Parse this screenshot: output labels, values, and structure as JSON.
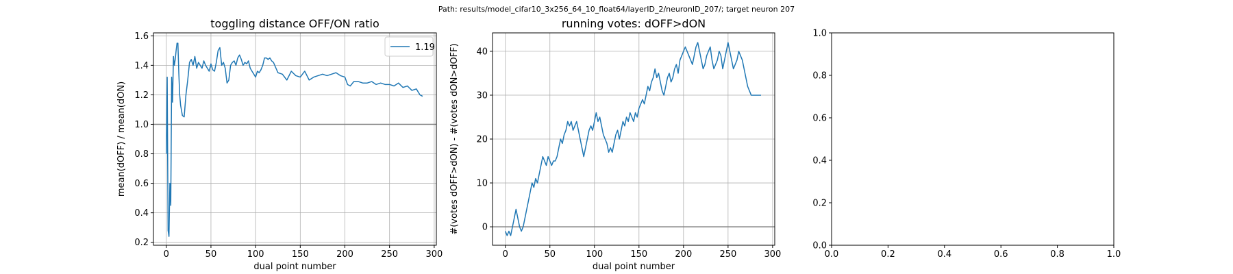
{
  "suptitle": "Path: results/model_cifar10_3x256_64_10_float64/layerID_2/neuronID_207/; target neuron 207",
  "chart_data": [
    {
      "type": "line",
      "title": "toggling distance OFF/ON ratio",
      "xlabel": "dual point number",
      "ylabel": "mean(dOFF) / mean(dON)",
      "xlim": [
        -14.4,
        302.4
      ],
      "ylim": [
        0.18,
        1.62
      ],
      "xticks": [
        0,
        50,
        100,
        150,
        200,
        250,
        300
      ],
      "yticks": [
        0.2,
        0.4,
        0.6,
        0.8,
        1.0,
        1.2,
        1.4,
        1.6
      ],
      "ytick_labels": [
        "0.2",
        "0.4",
        "0.6",
        "0.8",
        "1.0",
        "1.2",
        "1.4",
        "1.6"
      ],
      "grid": true,
      "legend_position": "top-right",
      "series": [
        {
          "name": "1.19",
          "color": "#1f77b4",
          "x": [
            0,
            1,
            2,
            3,
            4,
            5,
            6,
            7,
            8,
            9,
            10,
            11,
            12,
            13,
            14,
            15,
            16,
            18,
            20,
            22,
            24,
            26,
            28,
            30,
            32,
            34,
            36,
            38,
            40,
            42,
            44,
            46,
            48,
            50,
            52,
            54,
            56,
            58,
            60,
            62,
            64,
            66,
            68,
            70,
            72,
            74,
            76,
            78,
            80,
            82,
            84,
            86,
            88,
            90,
            92,
            94,
            96,
            98,
            100,
            102,
            104,
            106,
            108,
            110,
            112,
            114,
            116,
            118,
            120,
            125,
            130,
            135,
            140,
            145,
            150,
            155,
            160,
            165,
            170,
            175,
            180,
            185,
            190,
            195,
            200,
            203,
            206,
            210,
            215,
            220,
            225,
            230,
            235,
            240,
            245,
            250,
            255,
            260,
            265,
            270,
            275,
            280,
            284,
            287
          ],
          "y": [
            0.8,
            1.32,
            0.28,
            0.24,
            0.6,
            0.45,
            1.32,
            1.15,
            1.46,
            1.4,
            1.44,
            1.5,
            1.55,
            1.55,
            1.35,
            1.2,
            1.13,
            1.06,
            1.05,
            1.2,
            1.3,
            1.42,
            1.44,
            1.4,
            1.46,
            1.38,
            1.42,
            1.4,
            1.38,
            1.43,
            1.4,
            1.38,
            1.36,
            1.41,
            1.37,
            1.36,
            1.42,
            1.5,
            1.52,
            1.4,
            1.42,
            1.38,
            1.28,
            1.3,
            1.4,
            1.42,
            1.43,
            1.4,
            1.45,
            1.47,
            1.44,
            1.4,
            1.42,
            1.41,
            1.43,
            1.38,
            1.36,
            1.34,
            1.32,
            1.36,
            1.35,
            1.37,
            1.4,
            1.45,
            1.45,
            1.44,
            1.45,
            1.43,
            1.42,
            1.35,
            1.34,
            1.3,
            1.36,
            1.33,
            1.32,
            1.36,
            1.3,
            1.32,
            1.33,
            1.34,
            1.33,
            1.34,
            1.35,
            1.33,
            1.32,
            1.27,
            1.26,
            1.29,
            1.29,
            1.28,
            1.28,
            1.29,
            1.27,
            1.28,
            1.27,
            1.27,
            1.26,
            1.28,
            1.25,
            1.26,
            1.23,
            1.24,
            1.2,
            1.19
          ]
        }
      ],
      "hline": 1.0
    },
    {
      "type": "line",
      "title": "running votes: dOFF>dON",
      "xlabel": "dual point number",
      "ylabel": "#(votes dOFF>dON) - #(votes dON>dOFF)",
      "xlim": [
        -14.4,
        302.4
      ],
      "ylim": [
        -4.2,
        44.2
      ],
      "xticks": [
        0,
        50,
        100,
        150,
        200,
        250,
        300
      ],
      "yticks": [
        0,
        10,
        20,
        30,
        40
      ],
      "ytick_labels": [
        "0",
        "10",
        "20",
        "30",
        "40"
      ],
      "grid": true,
      "series": [
        {
          "color": "#1f77b4",
          "x": [
            0,
            2,
            4,
            6,
            8,
            10,
            12,
            14,
            16,
            18,
            20,
            22,
            24,
            26,
            28,
            30,
            32,
            34,
            36,
            38,
            40,
            42,
            44,
            46,
            48,
            50,
            52,
            54,
            56,
            58,
            60,
            62,
            64,
            66,
            68,
            70,
            72,
            74,
            76,
            78,
            80,
            82,
            84,
            86,
            88,
            90,
            92,
            94,
            96,
            98,
            100,
            102,
            104,
            106,
            108,
            110,
            112,
            114,
            116,
            118,
            120,
            122,
            124,
            126,
            128,
            130,
            132,
            134,
            136,
            138,
            140,
            142,
            144,
            146,
            148,
            150,
            152,
            154,
            156,
            158,
            160,
            162,
            164,
            166,
            168,
            170,
            172,
            174,
            176,
            178,
            180,
            182,
            184,
            186,
            188,
            190,
            192,
            194,
            196,
            198,
            200,
            202,
            204,
            206,
            208,
            210,
            212,
            214,
            216,
            218,
            220,
            222,
            224,
            226,
            228,
            230,
            232,
            234,
            236,
            238,
            240,
            242,
            244,
            246,
            248,
            250,
            252,
            254,
            256,
            258,
            260,
            262,
            264,
            266,
            268,
            270,
            272,
            274,
            276,
            278,
            280,
            282,
            284,
            286,
            287
          ],
          "y": [
            -1,
            -2,
            -1,
            -2,
            0,
            2,
            4,
            2,
            0,
            -1,
            0,
            2,
            4,
            6,
            8,
            10,
            9,
            11,
            10,
            12,
            14,
            16,
            15,
            14,
            16,
            15,
            14,
            15,
            15,
            16,
            18,
            20,
            19,
            21,
            22,
            24,
            23,
            24,
            22,
            23,
            24,
            22,
            20,
            18,
            16,
            18,
            20,
            22,
            23,
            22,
            24,
            26,
            24,
            25,
            23,
            21,
            20,
            19,
            17,
            18,
            17,
            19,
            21,
            22,
            20,
            22,
            24,
            23,
            25,
            24,
            26,
            25,
            24,
            26,
            25,
            27,
            28,
            29,
            28,
            30,
            32,
            31,
            33,
            34,
            36,
            34,
            35,
            33,
            31,
            30,
            32,
            34,
            35,
            33,
            34,
            36,
            37,
            35,
            38,
            39,
            40,
            41,
            40,
            39,
            38,
            37,
            39,
            41,
            42,
            40,
            38,
            36,
            37,
            39,
            40,
            41,
            38,
            36,
            37,
            38,
            40,
            39,
            36,
            38,
            40,
            42,
            40,
            38,
            36,
            37,
            38,
            40,
            39,
            38,
            36,
            34,
            32,
            31,
            30,
            30,
            30,
            30,
            30,
            30,
            30
          ]
        }
      ],
      "hline": 0
    },
    {
      "type": "line",
      "title": "",
      "xlabel": "",
      "ylabel": "",
      "xlim": [
        0.0,
        1.0
      ],
      "ylim": [
        0.0,
        1.0
      ],
      "xticks": [
        0.0,
        0.2,
        0.4,
        0.6,
        0.8,
        1.0
      ],
      "yticks": [
        0.0,
        0.2,
        0.4,
        0.6,
        0.8,
        1.0
      ],
      "xtick_labels": [
        "0.0",
        "0.2",
        "0.4",
        "0.6",
        "0.8",
        "1.0"
      ],
      "ytick_labels": [
        "0.0",
        "0.2",
        "0.4",
        "0.6",
        "0.8",
        "1.0"
      ],
      "grid": false,
      "series": []
    }
  ]
}
